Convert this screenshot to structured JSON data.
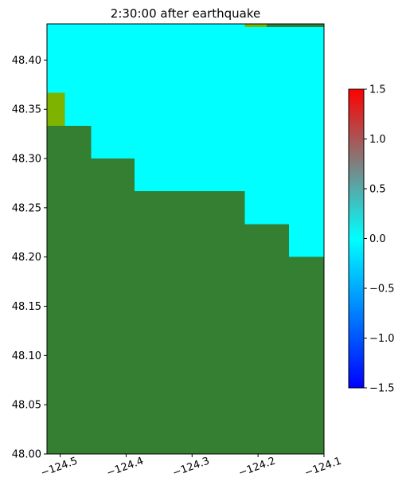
{
  "chart_data": {
    "type": "heatmap",
    "title": "2:30:00 after earthquake",
    "xlabel": "",
    "ylabel": "",
    "xlim": [
      -124.52,
      -124.1
    ],
    "ylim": [
      48.0,
      48.4367
    ],
    "x_ticks": [
      -124.5,
      -124.4,
      -124.3,
      -124.2,
      -124.1
    ],
    "x_tick_labels": [
      "−124.5",
      "−124.4",
      "−124.3",
      "−124.2",
      "−124.1"
    ],
    "y_ticks": [
      48.0,
      48.05,
      48.1,
      48.15,
      48.2,
      48.25,
      48.3,
      48.35,
      48.4
    ],
    "y_tick_labels": [
      "48.00",
      "48.05",
      "48.10",
      "48.15",
      "48.20",
      "48.25",
      "48.30",
      "48.35",
      "48.40"
    ],
    "grid": false,
    "colorbar": {
      "range": [
        -1.5,
        1.5
      ],
      "ticks": [
        -1.5,
        -1.0,
        -0.5,
        0.0,
        0.5,
        1.0,
        1.5
      ],
      "tick_labels": [
        "−1.5",
        "−1.0",
        "−0.5",
        "0.0",
        "0.5",
        "1.0",
        "1.5"
      ],
      "colors": [
        "#0000ff",
        "#00ffff",
        "#ff0000"
      ]
    },
    "layers": [
      {
        "name": "water_surface",
        "value": 0.0,
        "color": "#00ffff",
        "regions": [
          {
            "x0": -124.52,
            "x1": -124.1,
            "y0": 48.0,
            "y1": 48.4367
          }
        ]
      },
      {
        "name": "land",
        "color": "#357f32",
        "regions": [
          {
            "x0": -124.52,
            "x1": -124.453,
            "y0": 48.0,
            "y1": 48.3333
          },
          {
            "x0": -124.453,
            "x1": -124.387,
            "y0": 48.0,
            "y1": 48.3
          },
          {
            "x0": -124.387,
            "x1": -124.22,
            "y0": 48.0,
            "y1": 48.2667
          },
          {
            "x0": -124.22,
            "x1": -124.153,
            "y0": 48.0,
            "y1": 48.2333
          },
          {
            "x0": -124.153,
            "x1": -124.1,
            "y0": 48.0,
            "y1": 48.2
          },
          {
            "x0": -124.187,
            "x1": -124.1,
            "y0": 48.4333,
            "y1": 48.4367
          }
        ]
      },
      {
        "name": "coastal_land_highlight",
        "color": "#7eb300",
        "regions": [
          {
            "x0": -124.52,
            "x1": -124.493,
            "y0": 48.3333,
            "y1": 48.3667
          },
          {
            "x0": -124.22,
            "x1": -124.187,
            "y0": 48.4333,
            "y1": 48.4367
          }
        ]
      }
    ]
  }
}
